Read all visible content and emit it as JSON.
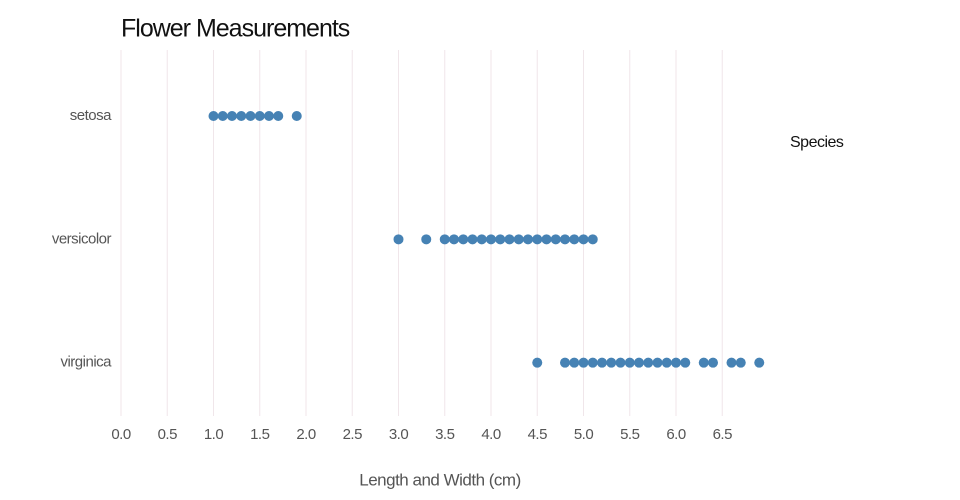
{
  "chart_data": {
    "type": "strip",
    "title": "Flower Measurements",
    "x_label": "Length and Width (cm)",
    "legend_title": "Species",
    "categories": [
      "setosa",
      "versicolor",
      "virginica"
    ],
    "values": [
      [
        1.0,
        1.1,
        1.2,
        1.3,
        1.4,
        1.5,
        1.6,
        1.7,
        1.9
      ],
      [
        3.0,
        3.3,
        3.5,
        3.6,
        3.7,
        3.8,
        3.9,
        4.0,
        4.1,
        4.2,
        4.3,
        4.4,
        4.5,
        4.6,
        4.7,
        4.8,
        4.9,
        5.0,
        5.1
      ],
      [
        4.5,
        4.8,
        4.9,
        5.0,
        5.1,
        5.2,
        5.3,
        5.4,
        5.5,
        5.6,
        5.7,
        5.8,
        5.9,
        6.0,
        6.1,
        6.3,
        6.4,
        6.6,
        6.7,
        6.9
      ]
    ],
    "color": "#4682b4",
    "xlim": [
      0,
      7
    ],
    "xticks": [
      {
        "value": 0,
        "label": "0.0"
      },
      {
        "value": 0.5,
        "label": "0.5"
      },
      {
        "value": 1,
        "label": "1.0"
      },
      {
        "value": 1.5,
        "label": "1.5"
      },
      {
        "value": 2,
        "label": "2.0"
      },
      {
        "value": 2.5,
        "label": "2.5"
      },
      {
        "value": 3,
        "label": "3.0"
      },
      {
        "value": 3.5,
        "label": "3.5"
      },
      {
        "value": 4,
        "label": "4.0"
      },
      {
        "value": 4.5,
        "label": "4.5"
      },
      {
        "value": 5,
        "label": "5.0"
      },
      {
        "value": 5.5,
        "label": "5.5"
      },
      {
        "value": 6,
        "label": "6.0"
      },
      {
        "value": 6.5,
        "label": "6.5"
      }
    ],
    "grid": true
  }
}
